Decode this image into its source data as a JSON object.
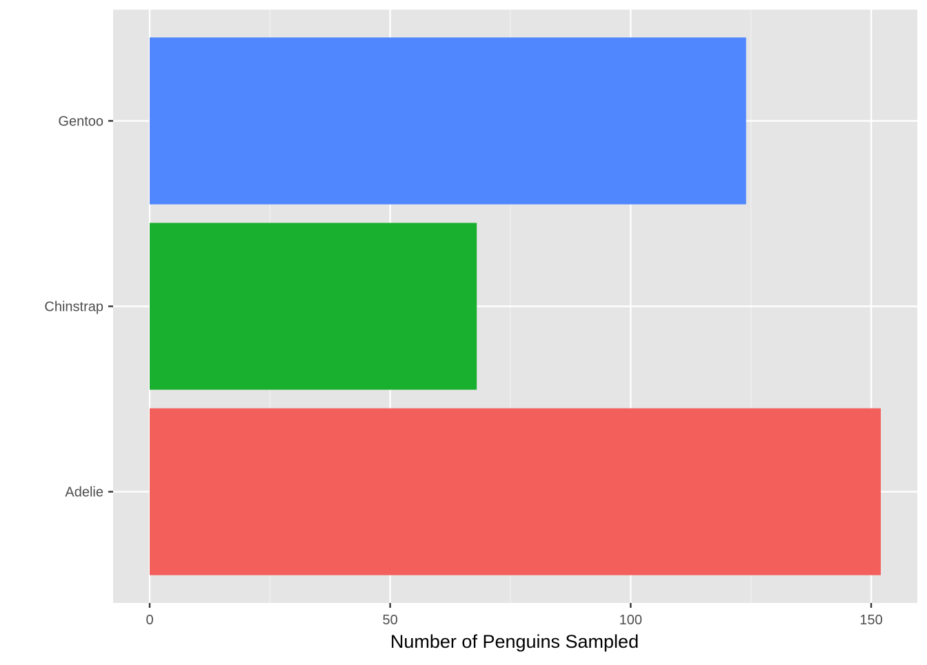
{
  "chart_data": {
    "type": "bar",
    "orientation": "horizontal",
    "categories": [
      "Adelie",
      "Chinstrap",
      "Gentoo"
    ],
    "values": [
      152,
      68,
      124
    ],
    "colors": [
      "#F35F5B",
      "#1AB02F",
      "#5087FF"
    ],
    "xlabel": "Number of Penguins Sampled",
    "ylabel": "",
    "xlim": [
      -7.6,
      159.6
    ],
    "x_ticks": [
      0,
      50,
      100,
      150
    ],
    "x_minor_ticks": [
      25,
      75,
      125
    ],
    "grid": true,
    "legend": "none",
    "panel_background": "#E5E5E5"
  }
}
